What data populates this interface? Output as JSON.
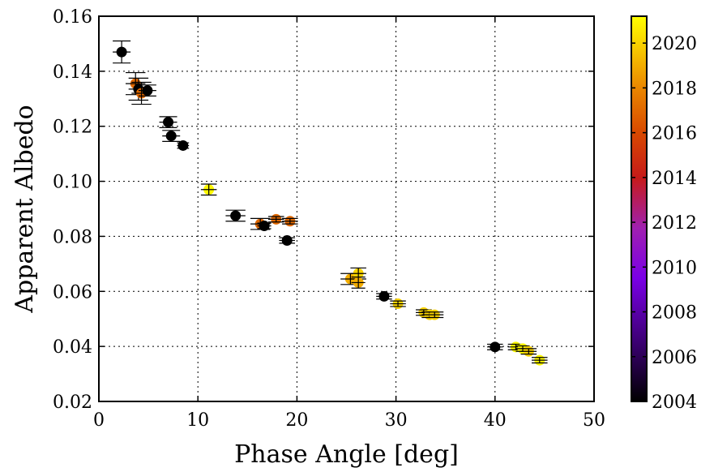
{
  "chart_data": {
    "type": "scatter",
    "title": "",
    "xlabel": "Phase Angle [deg]",
    "ylabel": "Apparent Albedo",
    "xlim": [
      0,
      50
    ],
    "ylim": [
      0.02,
      0.16
    ],
    "xticks": [
      0,
      10,
      20,
      30,
      40,
      50
    ],
    "yticks": [
      0.02,
      0.04,
      0.06,
      0.08,
      0.1,
      0.12,
      0.14,
      0.16
    ],
    "xtick_labels": [
      "0",
      "10",
      "20",
      "30",
      "40",
      "50"
    ],
    "ytick_labels": [
      "0.02",
      "0.04",
      "0.06",
      "0.08",
      "0.10",
      "0.12",
      "0.14",
      "0.16"
    ],
    "grid": true,
    "colorbar": {
      "range": [
        2004,
        2021.2
      ],
      "ticks": [
        2004,
        2006,
        2008,
        2010,
        2012,
        2014,
        2016,
        2018,
        2020
      ],
      "tick_labels": [
        "2004",
        "2006",
        "2008",
        "2010",
        "2012",
        "2014",
        "2016",
        "2018",
        "2020"
      ],
      "colormap": "gnuplot (black-purple-red-orange-yellow)"
    },
    "points": [
      {
        "x": 2.3,
        "y": 0.147,
        "xerr": 0.9,
        "yerr": 0.004,
        "year": 2004
      },
      {
        "x": 3.7,
        "y": 0.1355,
        "xerr": 1.0,
        "yerr": 0.004,
        "year": 2017
      },
      {
        "x": 4.0,
        "y": 0.1335,
        "xerr": 1.0,
        "yerr": 0.004,
        "year": 2004
      },
      {
        "x": 4.3,
        "y": 0.132,
        "xerr": 1.0,
        "yerr": 0.004,
        "year": 2017
      },
      {
        "x": 4.9,
        "y": 0.133,
        "xerr": 0.9,
        "yerr": 0.002,
        "year": 2004
      },
      {
        "x": 7.0,
        "y": 0.1215,
        "xerr": 0.9,
        "yerr": 0.002,
        "year": 2004
      },
      {
        "x": 7.3,
        "y": 0.1165,
        "xerr": 0.9,
        "yerr": 0.002,
        "year": 2004
      },
      {
        "x": 8.5,
        "y": 0.113,
        "xerr": 0.6,
        "yerr": 0.001,
        "year": 2004
      },
      {
        "x": 11.1,
        "y": 0.097,
        "xerr": 0.8,
        "yerr": 0.002,
        "year": 2021
      },
      {
        "x": 13.8,
        "y": 0.0875,
        "xerr": 1.0,
        "yerr": 0.002,
        "year": 2004
      },
      {
        "x": 16.3,
        "y": 0.0845,
        "xerr": 1.0,
        "yerr": 0.002,
        "year": 2017
      },
      {
        "x": 16.7,
        "y": 0.0838,
        "xerr": 0.7,
        "yerr": 0.001,
        "year": 2004
      },
      {
        "x": 17.9,
        "y": 0.0862,
        "xerr": 0.8,
        "yerr": 0.001,
        "year": 2017
      },
      {
        "x": 19.0,
        "y": 0.0785,
        "xerr": 0.8,
        "yerr": 0.001,
        "year": 2004
      },
      {
        "x": 19.3,
        "y": 0.0855,
        "xerr": 0.8,
        "yerr": 0.001,
        "year": 2017
      },
      {
        "x": 25.4,
        "y": 0.0645,
        "xerr": 1.0,
        "yerr": 0.002,
        "year": 2019
      },
      {
        "x": 26.2,
        "y": 0.0665,
        "xerr": 0.8,
        "yerr": 0.002,
        "year": 2020
      },
      {
        "x": 26.2,
        "y": 0.0632,
        "xerr": 0.7,
        "yerr": 0.002,
        "year": 2019
      },
      {
        "x": 28.8,
        "y": 0.0582,
        "xerr": 0.8,
        "yerr": 0.001,
        "year": 2004
      },
      {
        "x": 30.2,
        "y": 0.0555,
        "xerr": 0.8,
        "yerr": 0.001,
        "year": 2020
      },
      {
        "x": 32.8,
        "y": 0.0523,
        "xerr": 0.8,
        "yerr": 0.001,
        "year": 2020
      },
      {
        "x": 33.4,
        "y": 0.0515,
        "xerr": 0.8,
        "yerr": 0.001,
        "year": 2020
      },
      {
        "x": 33.9,
        "y": 0.0515,
        "xerr": 0.9,
        "yerr": 0.001,
        "year": 2020
      },
      {
        "x": 40.0,
        "y": 0.0398,
        "xerr": 0.8,
        "yerr": 0.001,
        "year": 2004
      },
      {
        "x": 42.1,
        "y": 0.0398,
        "xerr": 0.8,
        "yerr": 0.001,
        "year": 2021
      },
      {
        "x": 42.8,
        "y": 0.0392,
        "xerr": 0.7,
        "yerr": 0.001,
        "year": 2021
      },
      {
        "x": 43.4,
        "y": 0.0382,
        "xerr": 0.8,
        "yerr": 0.001,
        "year": 2020
      },
      {
        "x": 44.5,
        "y": 0.035,
        "xerr": 0.8,
        "yerr": 0.001,
        "year": 2021
      }
    ]
  }
}
